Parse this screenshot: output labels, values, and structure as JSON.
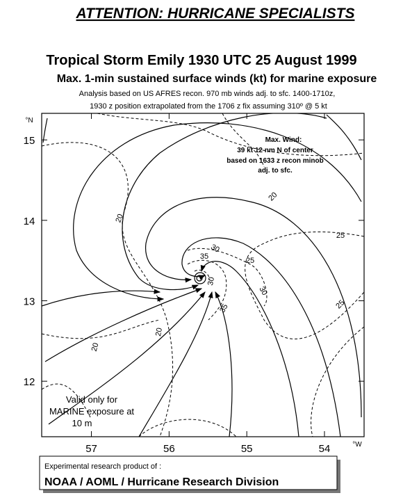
{
  "header": {
    "attention": "ATTENTION: HURRICANE SPECIALISTS",
    "title": "Tropical Storm Emily 1930 UTC 25 August 1999",
    "subtitle": "Max. 1-min sustained surface winds (kt) for marine exposure",
    "note_lines": [
      "Analysis based on US AFRES recon. 970 mb winds adj. to sfc. 1400-1710z,",
      "1930 z position extrapolated from the 1706 z fix assuming 310º @ 5 kt"
    ]
  },
  "map": {
    "xlim": [
      57.64,
      53.49
    ],
    "ylim": [
      11.31,
      15.33
    ],
    "xticks": [
      57,
      56,
      55,
      54
    ],
    "yticks": [
      15,
      14,
      13,
      12
    ],
    "x_unit": "°W",
    "y_unit": "°N",
    "max_wind": [
      "Max. Wind:",
      "39 kt  12 nm N of center",
      "based on 1633 z recon minob",
      "adj. to sfc."
    ],
    "validity": [
      "Valid only for",
      "MARINE exposure at",
      "10 m"
    ],
    "contour_labels": [
      20,
      20,
      20,
      20,
      25,
      25,
      25,
      30,
      30,
      35,
      35,
      30
    ]
  },
  "footer": {
    "line1": "Experimental research product of :",
    "line2": "NOAA / AOML / Hurricane Research Division"
  }
}
